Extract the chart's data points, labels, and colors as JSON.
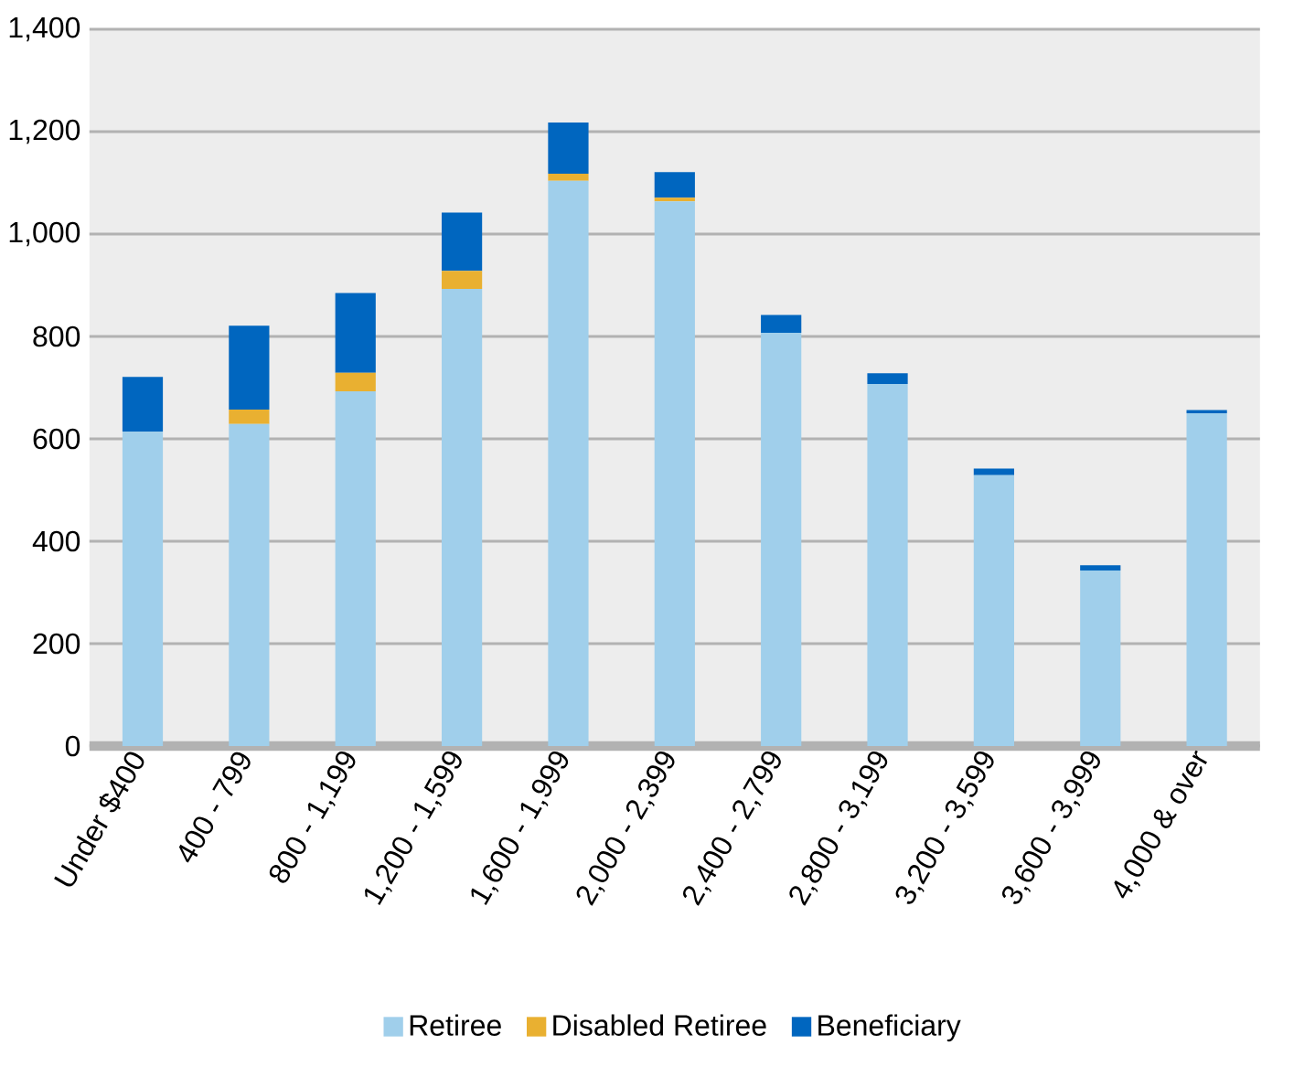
{
  "chart_data": {
    "type": "bar",
    "stacked": true,
    "categories": [
      "Under $400",
      "400 -   799",
      "800 - 1,199",
      "1,200 - 1,599",
      "1,600 - 1,999",
      "2,000 - 2,399",
      "2,400 - 2,799",
      "2,800 - 3,199",
      "3,200 - 3,599",
      "3,600 - 3,999",
      "4,000 & over"
    ],
    "series": [
      {
        "name": "Retiree",
        "color": "#a0cfeb",
        "values": [
          614,
          629,
          693,
          893,
          1104,
          1064,
          807,
          707,
          529,
          343,
          650
        ]
      },
      {
        "name": "Disabled Retiree",
        "color": "#e9b031",
        "values": [
          0,
          28,
          36,
          35,
          14,
          7,
          null,
          null,
          null,
          0,
          null
        ]
      },
      {
        "name": "Beneficiary",
        "color": "#0066bf",
        "values": [
          107,
          164,
          156,
          114,
          100,
          50,
          35,
          21,
          13,
          10,
          6
        ]
      }
    ],
    "ylim": [
      0,
      1400
    ],
    "yticks": [
      0,
      200,
      400,
      600,
      800,
      {
        "value": 1000,
        "label": "1,000"
      },
      {
        "value": 1200,
        "label": "1,200"
      },
      {
        "value": 1400,
        "label": "1,400"
      }
    ],
    "grid": "y",
    "legend": "bottom"
  }
}
